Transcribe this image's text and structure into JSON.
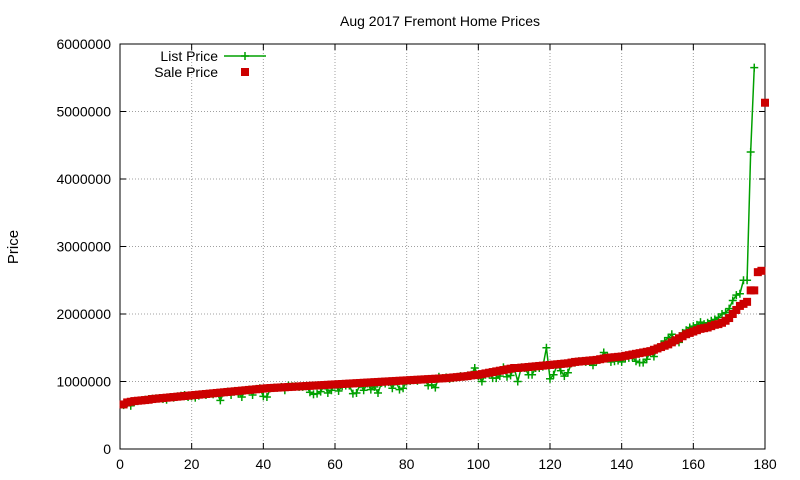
{
  "chart_data": {
    "type": "line",
    "title": "Aug 2017 Fremont Home Prices",
    "xlabel": "",
    "ylabel": "Price",
    "xlim": [
      0,
      180
    ],
    "ylim": [
      0,
      6000000
    ],
    "x_ticks": [
      "0",
      "20",
      "40",
      "60",
      "80",
      "100",
      "120",
      "140",
      "160",
      "180"
    ],
    "y_ticks": [
      "0",
      "1000000",
      "2000000",
      "3000000",
      "4000000",
      "5000000",
      "6000000"
    ],
    "grid": true,
    "legend_position": "top-left",
    "series": [
      {
        "name": "List Price",
        "marker": "plus",
        "line": true,
        "color": "#00a000",
        "values": [
          650000,
          680000,
          640000,
          700000,
          710000,
          720000,
          730000,
          740000,
          745000,
          750000,
          755000,
          740000,
          730000,
          770000,
          760000,
          780000,
          790000,
          800000,
          770000,
          780000,
          760000,
          790000,
          810000,
          800000,
          820000,
          810000,
          830000,
          720000,
          840000,
          850000,
          800000,
          860000,
          820000,
          770000,
          870000,
          880000,
          800000,
          890000,
          900000,
          780000,
          770000,
          900000,
          910000,
          910000,
          920000,
          870000,
          940000,
          930000,
          930000,
          920000,
          920000,
          930000,
          840000,
          810000,
          820000,
          850000,
          940000,
          830000,
          870000,
          950000,
          860000,
          930000,
          940000,
          940000,
          820000,
          830000,
          960000,
          870000,
          970000,
          880000,
          920000,
          830000,
          980000,
          970000,
          990000,
          900000,
          1000000,
          880000,
          900000,
          1000000,
          1010000,
          1020000,
          1010000,
          1030000,
          1030000,
          940000,
          950000,
          910000,
          1070000,
          1050000,
          1060000,
          1040000,
          1050000,
          1060000,
          1080000,
          1070000,
          1090000,
          1100000,
          1200000,
          1080000,
          1000000,
          1100000,
          1120000,
          1050000,
          1050000,
          1080000,
          1210000,
          1070000,
          1090000,
          1200000,
          1000000,
          1210000,
          1200000,
          1100000,
          1100000,
          1200000,
          1200000,
          1220000,
          1500000,
          1040000,
          1100000,
          1250000,
          1160000,
          1080000,
          1130000,
          1270000,
          1280000,
          1300000,
          1300000,
          1290000,
          1300000,
          1240000,
          1310000,
          1330000,
          1430000,
          1380000,
          1290000,
          1300000,
          1310000,
          1290000,
          1340000,
          1350000,
          1360000,
          1300000,
          1280000,
          1280000,
          1330000,
          1440000,
          1370000,
          1500000,
          1550000,
          1600000,
          1650000,
          1700000,
          1600000,
          1580000,
          1720000,
          1760000,
          1800000,
          1820000,
          1840000,
          1880000,
          1850000,
          1870000,
          1900000,
          1920000,
          1950000,
          2000000,
          2020000,
          2080000,
          2200000,
          2280000,
          2300000,
          2500000,
          2500000,
          4400000,
          5650000
        ]
      },
      {
        "name": "Sale Price",
        "marker": "square",
        "line": false,
        "color": "#cc0000",
        "values": [
          660000,
          690000,
          700000,
          710000,
          715000,
          720000,
          725000,
          730000,
          740000,
          745000,
          750000,
          755000,
          760000,
          765000,
          770000,
          775000,
          780000,
          785000,
          790000,
          795000,
          800000,
          805000,
          810000,
          815000,
          820000,
          825000,
          830000,
          835000,
          840000,
          845000,
          850000,
          855000,
          860000,
          865000,
          870000,
          875000,
          880000,
          885000,
          890000,
          895000,
          900000,
          903000,
          906000,
          909000,
          912000,
          915000,
          918000,
          921000,
          924000,
          927000,
          930000,
          933000,
          936000,
          939000,
          942000,
          945000,
          948000,
          951000,
          954000,
          957000,
          960000,
          963000,
          966000,
          969000,
          972000,
          975000,
          978000,
          981000,
          984000,
          987000,
          990000,
          993000,
          996000,
          999000,
          1002000,
          1005000,
          1008000,
          1011000,
          1014000,
          1017000,
          1020000,
          1023000,
          1026000,
          1029000,
          1032000,
          1035000,
          1038000,
          1041000,
          1044000,
          1047000,
          1050000,
          1055000,
          1060000,
          1065000,
          1070000,
          1075000,
          1080000,
          1090000,
          1095000,
          1100000,
          1110000,
          1120000,
          1130000,
          1140000,
          1150000,
          1160000,
          1170000,
          1180000,
          1190000,
          1200000,
          1200000,
          1205000,
          1210000,
          1215000,
          1220000,
          1225000,
          1230000,
          1235000,
          1240000,
          1245000,
          1250000,
          1255000,
          1260000,
          1265000,
          1270000,
          1280000,
          1290000,
          1295000,
          1300000,
          1305000,
          1310000,
          1315000,
          1320000,
          1330000,
          1340000,
          1350000,
          1355000,
          1360000,
          1365000,
          1370000,
          1380000,
          1390000,
          1400000,
          1410000,
          1420000,
          1430000,
          1440000,
          1450000,
          1470000,
          1490000,
          1510000,
          1530000,
          1550000,
          1580000,
          1610000,
          1640000,
          1670000,
          1700000,
          1720000,
          1740000,
          1760000,
          1780000,
          1790000,
          1800000,
          1820000,
          1840000,
          1850000,
          1870000,
          1900000,
          1940000,
          2000000,
          2060000,
          2120000,
          2150000,
          2180000,
          2350000,
          2350000,
          2620000,
          2640000,
          5130000
        ]
      }
    ]
  }
}
